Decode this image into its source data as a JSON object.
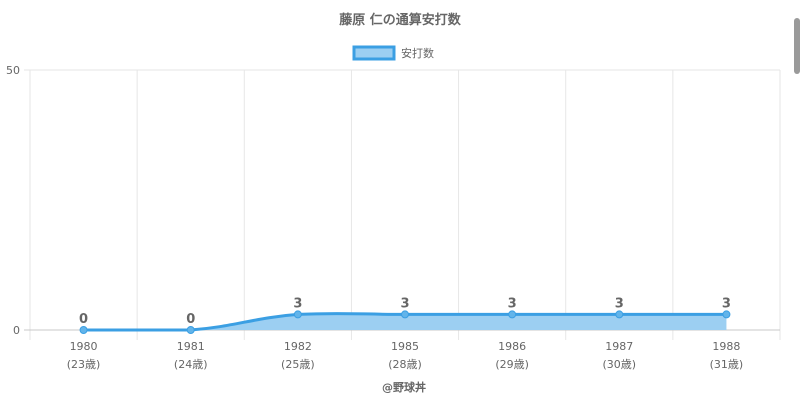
{
  "chart_data": {
    "type": "area",
    "title": "藤原 仁の通算安打数",
    "categories": [
      "1980",
      "1981",
      "1982",
      "1985",
      "1986",
      "1987",
      "1988"
    ],
    "sublabels": [
      "(23歳)",
      "(24歳)",
      "(25歳)",
      "(28歳)",
      "(29歳)",
      "(30歳)",
      "(31歳)"
    ],
    "series": [
      {
        "name": "安打数",
        "values": [
          0,
          0,
          3,
          3,
          3,
          3,
          3
        ]
      }
    ],
    "ylim": [
      0,
      50
    ],
    "yticks": [
      "0",
      "50"
    ],
    "grid": true,
    "legend": "top-center",
    "colors": {
      "line": "#3b9fe3",
      "fill": "#9ccff2",
      "point": "#62b4ea",
      "grid": "#e6e6e6"
    }
  },
  "credit": "@野球丼"
}
